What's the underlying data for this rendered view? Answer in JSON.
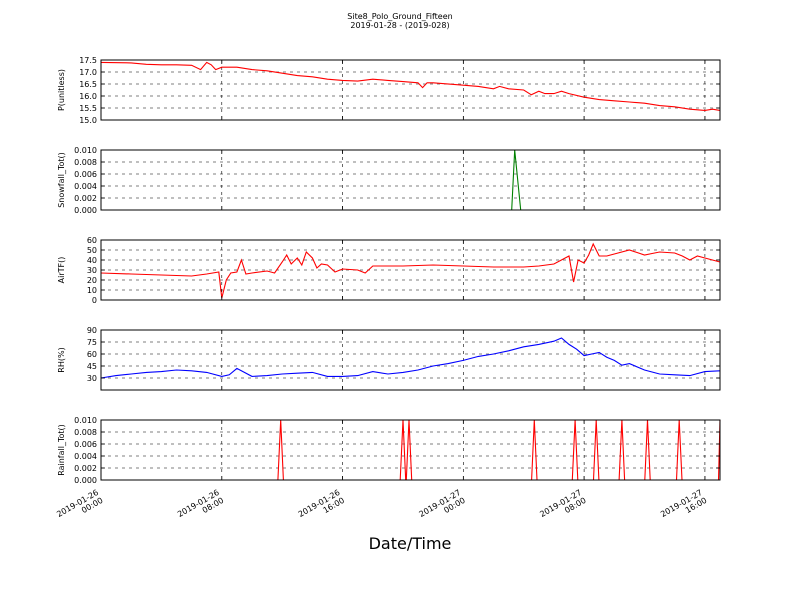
{
  "title": "Site8_Polo_Ground_Fifteen",
  "subtitle": "2019-01-28 - (2019-028)",
  "xlabel": "Date/Time",
  "chart_data": [
    {
      "type": "line",
      "ylabel": "P(unitless)",
      "ylim": [
        15.0,
        17.5
      ],
      "yticks": [
        "15.0",
        "15.5",
        "16.0",
        "16.5",
        "17.0",
        "17.5"
      ],
      "color": "#ff0000",
      "x_hours": [
        0,
        2,
        3,
        4,
        5,
        6,
        6.6,
        7,
        7.3,
        7.6,
        8,
        9,
        10,
        11,
        12,
        13,
        14,
        15,
        16,
        17,
        18,
        19,
        20,
        21,
        21.3,
        21.6,
        22,
        24,
        25,
        26,
        26.4,
        27,
        28,
        28.5,
        29,
        29.4,
        30,
        30.5,
        31,
        32,
        33,
        34,
        35,
        36,
        37,
        38,
        39,
        40,
        40.5,
        41
      ],
      "values": [
        17.4,
        17.38,
        17.32,
        17.3,
        17.3,
        17.28,
        17.1,
        17.4,
        17.3,
        17.1,
        17.2,
        17.2,
        17.1,
        17.05,
        16.95,
        16.85,
        16.8,
        16.7,
        16.65,
        16.62,
        16.7,
        16.65,
        16.6,
        16.55,
        16.35,
        16.55,
        16.55,
        16.45,
        16.4,
        16.3,
        16.4,
        16.3,
        16.25,
        16.05,
        16.2,
        16.1,
        16.1,
        16.2,
        16.1,
        15.95,
        15.85,
        15.8,
        15.75,
        15.7,
        15.6,
        15.55,
        15.45,
        15.4,
        15.45,
        15.4
      ]
    },
    {
      "type": "line",
      "ylabel": "Snowfall_Tot()",
      "ylim": [
        0.0,
        0.01
      ],
      "yticks": [
        "0.000",
        "0.002",
        "0.004",
        "0.006",
        "0.008",
        "0.010"
      ],
      "color": "#008000",
      "x_hours": [
        0,
        27.2,
        27.4,
        27.8,
        41
      ],
      "values": [
        0.0,
        0.0,
        0.01,
        0.0,
        0.0
      ]
    },
    {
      "type": "line",
      "ylabel": "AirTF()",
      "ylim": [
        0,
        60
      ],
      "yticks": [
        "0",
        "10",
        "20",
        "30",
        "40",
        "50",
        "60"
      ],
      "color": "#ff0000",
      "x_hours": [
        0,
        2,
        4,
        6,
        7,
        7.8,
        8,
        8.3,
        8.6,
        9,
        9.3,
        9.6,
        10,
        11,
        11.5,
        12,
        12.3,
        12.6,
        13,
        13.3,
        13.6,
        14,
        14.3,
        14.6,
        15,
        15.5,
        16,
        17,
        17.5,
        18,
        20,
        22,
        24,
        26,
        28,
        29,
        30,
        31,
        31.3,
        31.6,
        32,
        32.3,
        32.6,
        33,
        33.5,
        34,
        35,
        36,
        37,
        38,
        38.5,
        39,
        39.5,
        40,
        41
      ],
      "values": [
        27,
        26,
        25,
        24,
        26,
        28,
        2,
        20,
        27,
        28,
        40,
        26,
        27,
        29,
        27,
        38,
        45,
        36,
        42,
        35,
        48,
        42,
        32,
        36,
        35,
        28,
        31,
        30,
        27,
        34,
        34,
        35,
        34,
        33,
        33,
        34,
        36,
        44,
        18,
        40,
        37,
        45,
        56,
        44,
        44,
        46,
        50,
        45,
        48,
        47,
        44,
        40,
        44,
        42,
        38
      ]
    },
    {
      "type": "line",
      "ylabel": "RH(%)",
      "ylim": [
        15,
        90
      ],
      "yticks": [
        "30",
        "45",
        "60",
        "75",
        "90"
      ],
      "color": "#0000ff",
      "x_hours": [
        0,
        1,
        2,
        3,
        4,
        5,
        6,
        7,
        8,
        8.5,
        9,
        10,
        11,
        12,
        13,
        14,
        15,
        16,
        17,
        18,
        19,
        20,
        21,
        22,
        23,
        24,
        25,
        26,
        27,
        28,
        29,
        30,
        30.5,
        31,
        31.5,
        32,
        32.5,
        33,
        33.5,
        34,
        34.5,
        35,
        36,
        37,
        38,
        39,
        40,
        41
      ],
      "values": [
        30,
        33,
        35,
        37,
        38,
        40,
        39,
        37,
        32,
        34,
        42,
        32,
        33,
        35,
        36,
        37,
        32,
        32,
        33,
        38,
        35,
        37,
        40,
        45,
        48,
        52,
        57,
        60,
        64,
        69,
        72,
        76,
        80,
        72,
        66,
        58,
        60,
        62,
        56,
        52,
        46,
        48,
        40,
        35,
        34,
        33,
        38,
        39
      ]
    },
    {
      "type": "line",
      "ylabel": "Rainfall_Tot()",
      "ylim": [
        0.0,
        0.01
      ],
      "yticks": [
        "0.000",
        "0.002",
        "0.004",
        "0.006",
        "0.008",
        "0.010"
      ],
      "color": "#ff0000",
      "spikes_hours": [
        11.9,
        20.0,
        20.4,
        28.7,
        31.4,
        32.8,
        34.5,
        36.2,
        38.3
      ],
      "edge_rise_hours": 40.9
    }
  ],
  "x_axis": {
    "tick_hours": [
      0,
      8,
      16,
      24,
      32,
      40
    ],
    "tick_labels": [
      [
        "2019-01-26",
        "00:00"
      ],
      [
        "2019-01-26",
        "08:00"
      ],
      [
        "2019-01-26",
        "16:00"
      ],
      [
        "2019-01-27",
        "00:00"
      ],
      [
        "2019-01-27",
        "08:00"
      ],
      [
        "2019-01-27",
        "16:00"
      ]
    ],
    "range_hours": [
      0,
      41
    ]
  }
}
